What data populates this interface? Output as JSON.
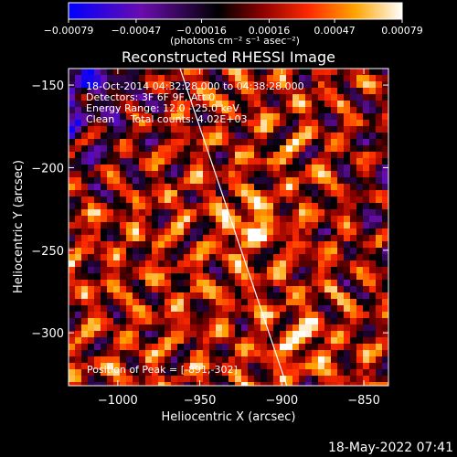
{
  "chart_data": {
    "type": "heatmap",
    "title": "Reconstructed RHESSI Image",
    "xlabel": "Heliocentric X (arcsec)",
    "ylabel": "Heliocentric Y (arcsec)",
    "xlim": [
      -1030,
      -835
    ],
    "ylim": [
      -332,
      -140
    ],
    "x_ticks": [
      -1000,
      -950,
      -900,
      -850
    ],
    "x_tick_labels": [
      "−1000",
      "−950",
      "−900",
      "−850"
    ],
    "y_ticks": [
      -150,
      -200,
      -250,
      -300
    ],
    "y_tick_labels": [
      "−150",
      "−200",
      "−250",
      "−300"
    ],
    "colorbar": {
      "min": -0.00079,
      "max": 0.00079,
      "ticks": [
        -0.00079,
        -0.00047,
        -0.00016,
        0.00016,
        0.00047,
        0.00079
      ],
      "tick_labels": [
        "−0.00079",
        "−0.00047",
        "−0.00016",
        "0.00016",
        "0.00047",
        "0.00079"
      ],
      "unit_label": "(photons cm⁻² s⁻¹ asec⁻²)",
      "colormap": [
        "#0000ff",
        "#6a0dad",
        "#000000",
        "#8b0000",
        "#ff2a00",
        "#ffa500",
        "#ffffff"
      ]
    },
    "annotations": [
      "18-Oct-2014 04:32:28.000 to 04:38:28.000",
      "Detectors: 3F 6F 9F, Att 0",
      "Energy Range: 12.0 - 25.0 keV",
      "Clean     Total counts: 4.02E+03"
    ],
    "peak_label": "Position of Peak = [-891,-302]",
    "peak_position": [
      -891,
      -302
    ],
    "limb": [
      [
        -962,
        -140
      ],
      [
        -897,
        -332
      ]
    ],
    "grid": false
  },
  "footer": {
    "timestamp": "18-May-2022 07:41"
  }
}
